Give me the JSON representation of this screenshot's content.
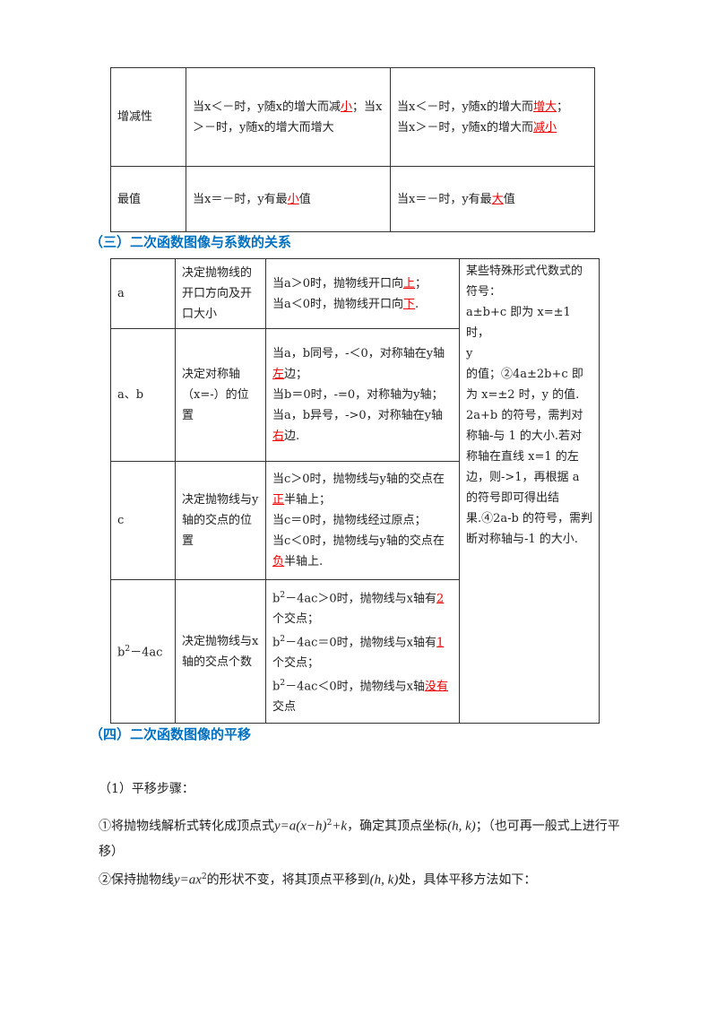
{
  "table1": {
    "rows": [
      [
        [
          [
            "增减性"
          ]
        ],
        [
          [
            "当x＜－时，y随x的增大而减",
            {
              "text": "小",
              "red": true
            },
            "；当x＞－时，y随x的增大而增大"
          ]
        ],
        [
          [
            "当x＜－时，y随x的增大而",
            {
              "text": "增大",
              "red": true
            },
            "；"
          ],
          [
            "当x＞－时，y随x的增大而",
            {
              "text": "减小",
              "red": true
            }
          ]
        ]
      ],
      [
        [
          [
            "最值"
          ]
        ],
        [
          [
            "当x＝－时，y有最",
            {
              "text": "小",
              "red": true
            },
            "值"
          ]
        ],
        [
          [
            "当x＝－时，y有最",
            {
              "text": "大",
              "red": true
            },
            "值"
          ]
        ]
      ]
    ]
  },
  "heading1": "（三）二次函数图像与系数的关系",
  "table2": {
    "rows": [
      [
        [
          [
            "a"
          ]
        ],
        [
          [
            "决定抛物线的开口方向及开口大小"
          ]
        ],
        [
          [
            "当a＞0时，抛物线开口向",
            {
              "text": "上",
              "red": true
            },
            "；"
          ],
          [
            "当a＜0时，抛物线开口向",
            {
              "text": "下",
              "red": true
            },
            "."
          ]
        ],
        [
          [
            "某些特殊形式代数式的符号："
          ],
          [
            "a±b+c 即为 x=±1 时，"
          ],
          [
            "y"
          ],
          [
            "的值；②4a±2b+c 即为 x=±2 时，y 的值."
          ],
          [
            "2a+b 的符号，需判对称轴-与 1 的大小.若对称轴在直线 x=1 的左边，则->1，再根据 a 的符号即可得出结果.④2a-b 的符号，需判断对称轴与-1 的大小."
          ]
        ]
      ],
      [
        [
          [
            "a、b"
          ]
        ],
        [
          [
            "决定对称轴（x=-）的位置"
          ]
        ],
        [
          [
            "当a，b同号，-＜0，对称轴在y轴",
            {
              "text": "左",
              "red": true
            },
            "边；"
          ],
          [
            "当b＝0时，-=0，对称轴为y轴；"
          ],
          [
            "当a，b异号，->0，对称轴在y轴",
            {
              "text": "右",
              "red": true
            },
            "边."
          ]
        ]
      ],
      [
        [
          [
            "c"
          ]
        ],
        [
          [
            "决定抛物线与y轴的交点的位置"
          ]
        ],
        [
          [
            "当c＞0时，抛物线与y轴的交点在",
            {
              "text": "正",
              "red": true
            },
            "半轴上；"
          ],
          [
            "当c＝0时，抛物线经过原点；"
          ],
          [
            "当c＜0时，抛物线与y轴的交点在",
            {
              "text": "负",
              "red": true
            },
            "半轴上."
          ]
        ]
      ],
      [
        [
          [
            "b",
            {
              "text": "2",
              "sup": true
            },
            "－4ac"
          ]
        ],
        [
          [
            "决定抛物线与x轴的交点个数"
          ]
        ],
        [
          [
            "b",
            {
              "text": "2",
              "sup": true
            },
            "－4ac＞0时，抛物线与x轴有",
            {
              "text": "2",
              "red": true
            },
            "个交点；"
          ],
          [
            "b",
            {
              "text": "2",
              "sup": true
            },
            "－4ac＝0时，抛物线与x轴有",
            {
              "text": "1",
              "red": true
            },
            "个交点；"
          ],
          [
            "b",
            {
              "text": "2",
              "sup": true
            },
            "－4ac＜0时，抛物线与x轴",
            {
              "text": "没有",
              "red": true
            },
            "交点"
          ]
        ]
      ]
    ]
  },
  "heading2": "（四）二次函数图像的平移",
  "paragraphs": [
    [
      "（1）平移步骤："
    ],
    [
      "①将抛物线解析式转化成顶点式",
      {
        "text": "y=a(x−h)",
        "math": true
      },
      {
        "text": "2",
        "sup": true
      },
      {
        "text": "+k",
        "math": true
      },
      "，确定其顶点坐标",
      {
        "text": "(h, k)",
        "math": true
      },
      "；（也可再一般式上进行平移）"
    ],
    [
      "②保持抛物线",
      {
        "text": "y=ax",
        "math": true
      },
      {
        "text": "2",
        "sup": true
      },
      "的形状不变，将其顶点平移到",
      {
        "text": "(h, k)",
        "math": true
      },
      "处，具体平移方法如下："
    ]
  ]
}
